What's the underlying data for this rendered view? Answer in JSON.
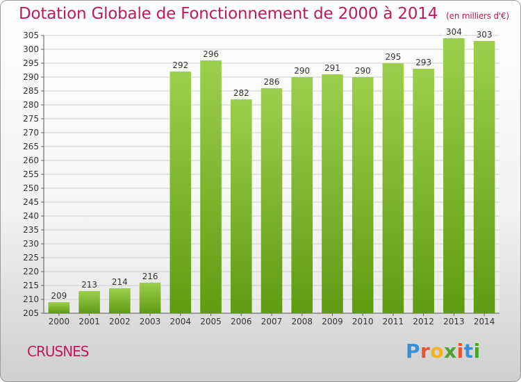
{
  "header": {
    "title": "Dotation Globale de Fonctionnement de 2000 à 2014",
    "unit_note": "(en milliers d'€)"
  },
  "footer": {
    "commune": "CRUSNES",
    "brand_letters": [
      "P",
      "r",
      "o",
      "x",
      "i",
      "t",
      "i"
    ]
  },
  "colors": {
    "title": "#c2185b",
    "bar_top": "#9ccf4d",
    "bar_bottom": "#5f9c12",
    "grid": "#cccccc"
  },
  "chart_data": {
    "type": "bar",
    "title": "Dotation Globale de Fonctionnement de 2000 à 2014",
    "subtitle": "(en milliers d'€)",
    "xlabel": "",
    "ylabel": "",
    "categories": [
      "2000",
      "2001",
      "2002",
      "2003",
      "2004",
      "2005",
      "2006",
      "2007",
      "2008",
      "2009",
      "2010",
      "2011",
      "2012",
      "2013",
      "2014"
    ],
    "values": [
      209,
      213,
      214,
      216,
      292,
      296,
      282,
      286,
      290,
      291,
      290,
      295,
      293,
      304,
      303
    ],
    "ylim": [
      205,
      305
    ],
    "ytick_step": 5,
    "grid": true,
    "data_labels": true
  }
}
